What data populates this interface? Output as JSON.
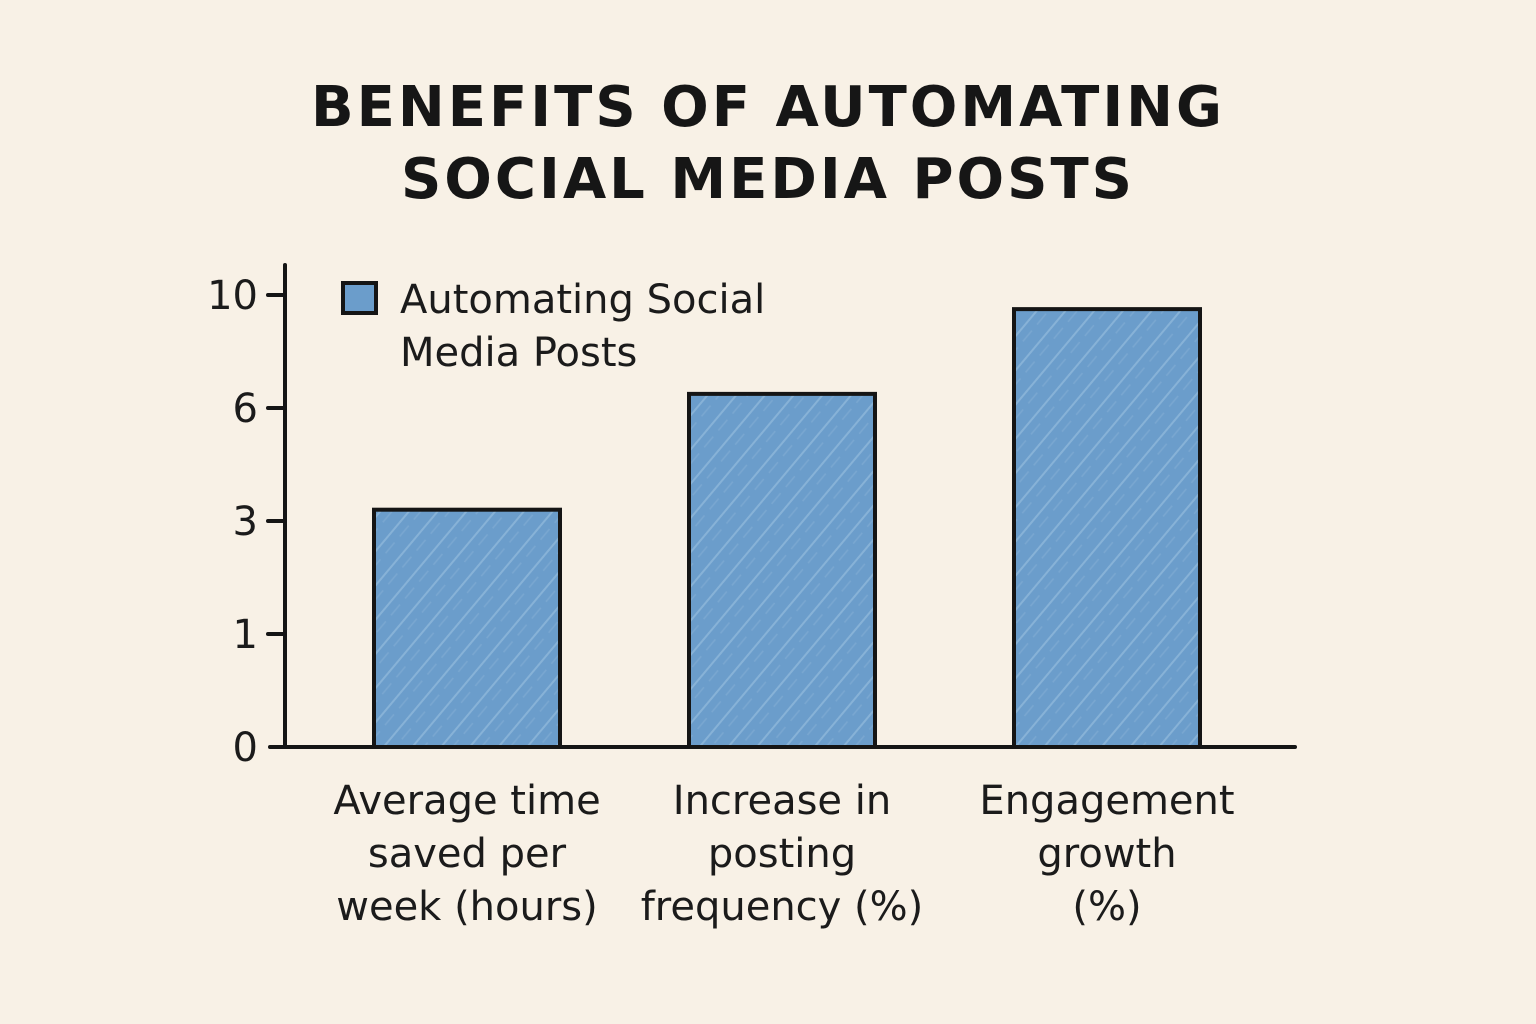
{
  "chart_data": {
    "type": "bar",
    "title_lines": [
      "BENEFITS OF AUTOMATING",
      "SOCIAL MEDIA POSTS"
    ],
    "categories": [
      [
        "Average time",
        "saved per",
        "week (hours)"
      ],
      [
        "Increase in",
        "posting",
        "frequency (%)"
      ],
      [
        "Engagement",
        "growth",
        "(%)"
      ]
    ],
    "series": [
      {
        "name": "Automating Social Media Posts",
        "values": [
          3.3,
          6.5,
          9.5
        ]
      }
    ],
    "legend_lines": [
      "Automating Social",
      "Media Posts"
    ],
    "yticks": [
      0,
      1,
      3,
      6,
      10
    ],
    "ylim": [
      0,
      10.5
    ],
    "y_scale": "non-linear (evenly spaced ticks 0, 1, 3, 6, 10)",
    "xlabel": "",
    "ylabel": "",
    "grid": false,
    "legend_position": "top-left",
    "colors": {
      "bar_fill": "#6b9dcb",
      "bar_stroke": "#151515",
      "axis": "#151515",
      "background": "#f8f1e6",
      "text": "#161616"
    }
  }
}
